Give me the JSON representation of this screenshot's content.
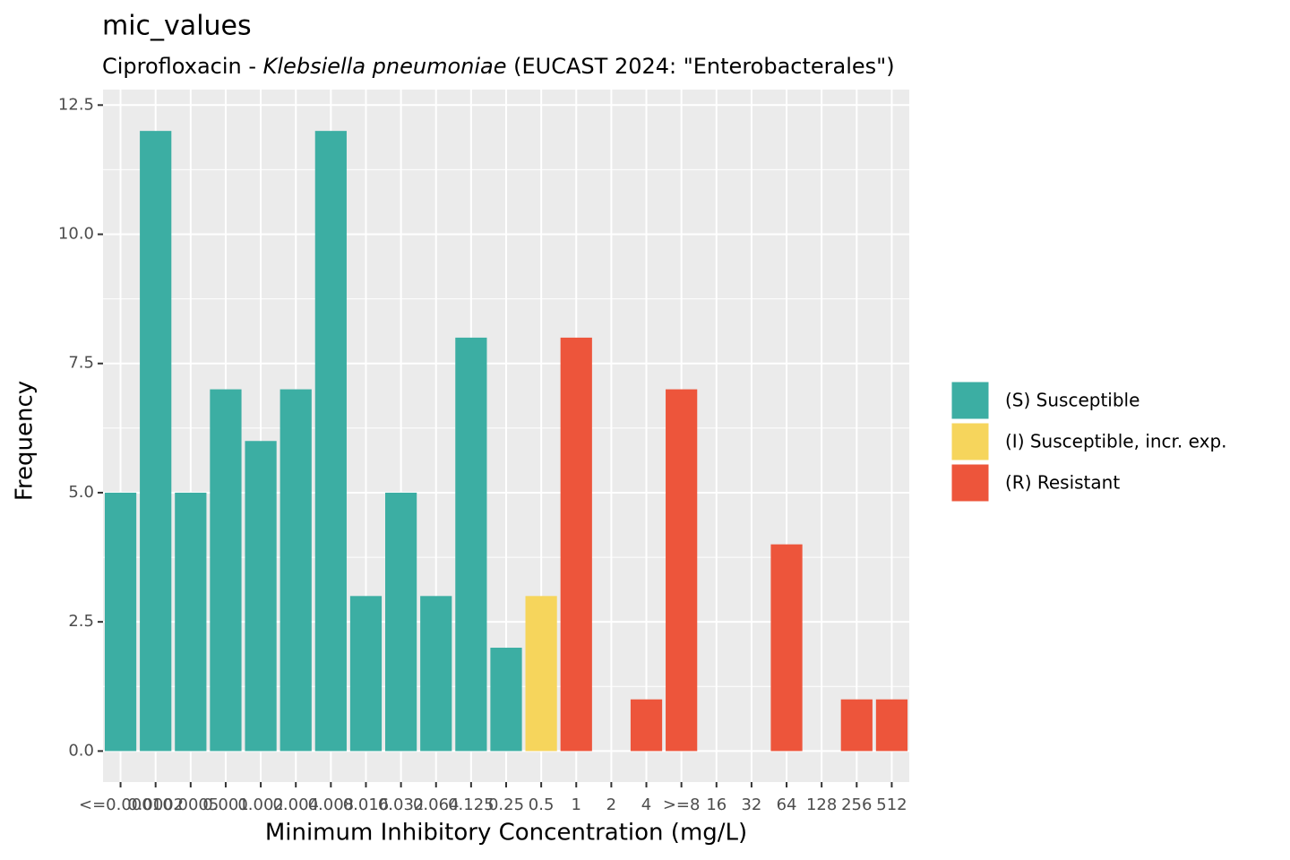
{
  "chart_data": {
    "type": "bar",
    "title": "mic_values",
    "subtitle": [
      "Ciprofloxacin - ",
      "Klebsiella pneumoniae",
      " (EUCAST 2024: \"Enterobacterales\")"
    ],
    "x_label": "Minimum Inhibitory Concentration (mg/L)",
    "y_label": "Frequency",
    "categories": [
      "<=0.0001",
      "0.0002",
      "0.0005",
      "0.001",
      "0.002",
      "0.004",
      "0.008",
      "0.016",
      "0.032",
      "0.064",
      "0.125",
      "0.25",
      "0.5",
      "1",
      "2",
      "4",
      ">=8",
      "16",
      "32",
      "64",
      "128",
      "256",
      "512"
    ],
    "series": [
      {
        "name": "(S) Susceptible",
        "color": "#3CAEA3",
        "values": [
          5,
          12,
          5,
          7,
          6,
          7,
          12,
          3,
          5,
          3,
          8,
          2,
          null,
          null,
          null,
          null,
          null,
          null,
          null,
          null,
          null,
          null,
          null
        ]
      },
      {
        "name": "(I) Susceptible, incr. exp.",
        "color": "#F6D55C",
        "values": [
          null,
          null,
          null,
          null,
          null,
          null,
          null,
          null,
          null,
          null,
          null,
          null,
          3,
          null,
          null,
          null,
          null,
          null,
          null,
          null,
          null,
          null,
          null
        ]
      },
      {
        "name": "(R) Resistant",
        "color": "#ED553B",
        "values": [
          null,
          null,
          null,
          null,
          null,
          null,
          null,
          null,
          null,
          null,
          null,
          null,
          null,
          8,
          0,
          1,
          7,
          0,
          0,
          4,
          0,
          1,
          1
        ]
      }
    ],
    "ylim": [
      -0.6,
      12.8
    ],
    "yticks": [
      {
        "value": 0,
        "label": "0.0"
      },
      {
        "value": 2.5,
        "label": "2.5"
      },
      {
        "value": 5,
        "label": "5.0"
      },
      {
        "value": 7.5,
        "label": "7.5"
      },
      {
        "value": 10,
        "label": "10.0"
      },
      {
        "value": 12.5,
        "label": "12.5"
      }
    ],
    "grid": true,
    "legend": "right"
  }
}
